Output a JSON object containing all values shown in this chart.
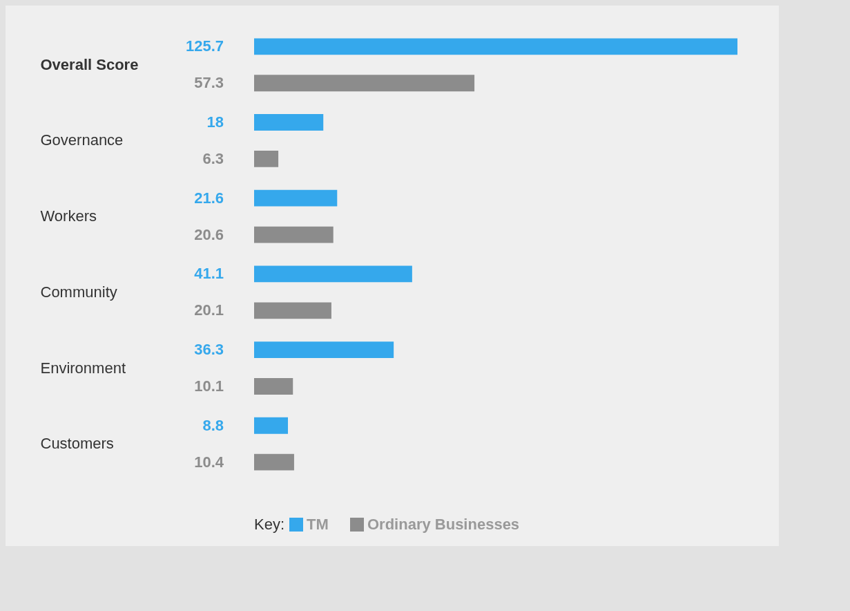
{
  "chart_data": {
    "type": "bar",
    "orientation": "horizontal",
    "categories": [
      "Overall Score",
      "Governance",
      "Workers",
      "Community",
      "Environment",
      "Customers"
    ],
    "series": [
      {
        "name": "TM",
        "color": "#35a8ec",
        "values": [
          125.7,
          18,
          21.6,
          41.1,
          36.3,
          8.8
        ]
      },
      {
        "name": "Ordinary Businesses",
        "color": "#8c8c8c",
        "values": [
          57.3,
          6.3,
          20.6,
          20.1,
          10.1,
          10.4
        ]
      }
    ],
    "data_labels": true,
    "legend": "bottom",
    "legend_title": "Key:"
  }
}
